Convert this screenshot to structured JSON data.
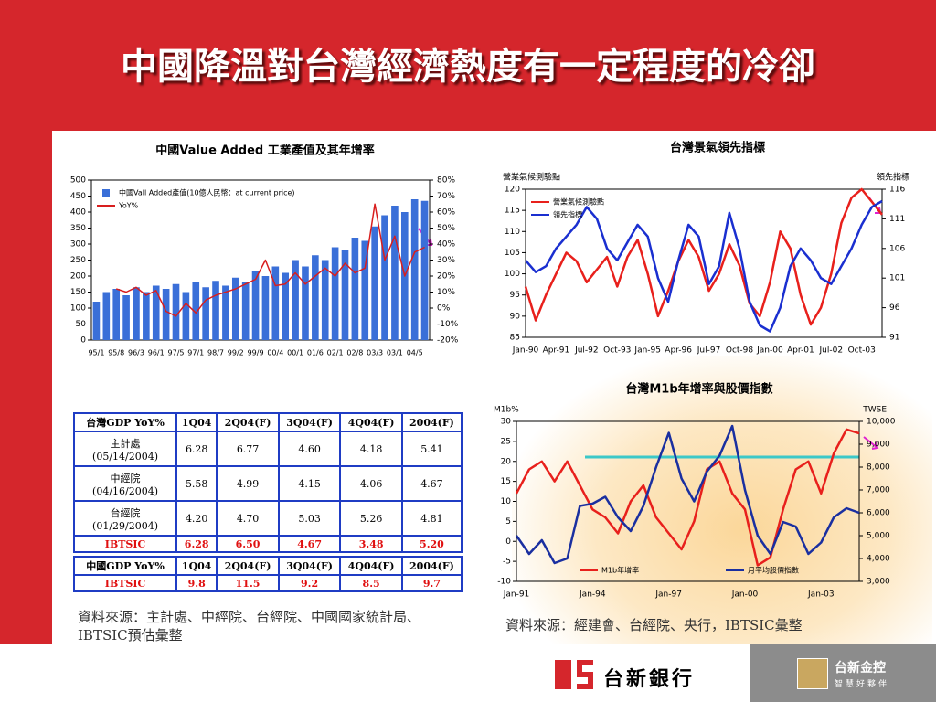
{
  "title": "中國降溫對台灣經濟熱度有一定程度的冷卻",
  "chart_data": [
    {
      "type": "bar",
      "title": "中國Value Added 工業產值及其年增率",
      "categories": [
        "95/1",
        null,
        "95/8",
        null,
        "96/3",
        null,
        "96/1",
        null,
        "97/5",
        null,
        "97/1",
        null,
        "98/7",
        null,
        "99/2",
        null,
        "99/9",
        null,
        "00/4",
        null,
        "00/1",
        null,
        "01/6",
        null,
        "02/1",
        null,
        "02/8",
        null,
        "03/3",
        null,
        "03/1",
        null,
        "04/5",
        null
      ],
      "series": [
        {
          "name": "中國Vall Added產值(10億人民幣：at current price)",
          "color": "#3a6fd8",
          "values": [
            120,
            150,
            160,
            140,
            165,
            150,
            170,
            160,
            175,
            150,
            180,
            165,
            185,
            170,
            195,
            180,
            215,
            200,
            230,
            210,
            250,
            230,
            265,
            250,
            290,
            280,
            320,
            310,
            355,
            390,
            420,
            400,
            440,
            435
          ]
        },
        {
          "name": "YoY%",
          "color": "#d81e1e",
          "type": "line",
          "axis": "y2",
          "values": [
            null,
            null,
            12,
            10,
            13,
            8,
            11,
            -2,
            -5,
            3,
            -3,
            5,
            8,
            10,
            12,
            15,
            18,
            30,
            14,
            15,
            22,
            15,
            20,
            25,
            20,
            28,
            22,
            25,
            65,
            30,
            45,
            20,
            35,
            38
          ]
        }
      ],
      "ylim": [
        0,
        500
      ],
      "yticks": [
        0,
        50,
        100,
        150,
        200,
        250,
        300,
        350,
        400,
        450,
        500
      ],
      "y2lim": [
        -20,
        80
      ],
      "y2ticks": [
        {
          "value": -20,
          "label": "-20%"
        },
        {
          "value": -10,
          "label": "-10%"
        },
        {
          "value": 0,
          "label": "0%"
        },
        {
          "value": 10,
          "label": "10%"
        },
        {
          "value": 20,
          "label": "20%"
        },
        {
          "value": 30,
          "label": "30%"
        },
        {
          "value": 40,
          "label": "40%"
        },
        {
          "value": 50,
          "label": "50%"
        },
        {
          "value": 60,
          "label": "60%"
        },
        {
          "value": 70,
          "label": "70%"
        },
        {
          "value": 80,
          "label": "80%"
        }
      ],
      "legend": "upper left"
    },
    {
      "type": "line",
      "title": "台灣景氣領先指標",
      "ylabel": "營業氣候測驗點",
      "y2label": "領先指標",
      "categories": [
        "Jan-90",
        null,
        null,
        "Apr-91",
        null,
        null,
        "Jul-92",
        null,
        null,
        "Oct-93",
        null,
        null,
        "Jan-95",
        null,
        null,
        "Apr-96",
        null,
        null,
        "Jul-97",
        null,
        null,
        "Oct-98",
        null,
        null,
        "Jan-00",
        null,
        null,
        "Apr-01",
        null,
        null,
        "Jul-02",
        null,
        null,
        "Oct-03",
        null,
        null
      ],
      "series": [
        {
          "name": "營業氣候測驗點",
          "color": "#e8201c",
          "values": [
            97,
            89,
            95,
            100,
            105,
            103,
            98,
            101,
            104,
            97,
            104,
            108,
            100,
            90,
            96,
            103,
            108,
            104,
            96,
            100,
            107,
            102,
            93,
            90,
            98,
            110,
            106,
            95,
            88,
            92,
            100,
            112,
            118,
            120,
            117,
            114
          ]
        },
        {
          "name": "領先指標",
          "color": "#1a2fd0",
          "axis": "y2",
          "values": [
            104,
            102,
            103,
            106,
            108,
            110,
            113,
            111,
            106,
            104,
            107,
            110,
            108,
            101,
            97,
            104,
            110,
            108,
            100,
            103,
            112,
            106,
            97,
            93,
            92,
            96,
            103,
            106,
            104,
            101,
            100,
            103,
            106,
            110,
            113,
            114
          ]
        }
      ],
      "ylim": [
        85,
        120
      ],
      "yticks": [
        85,
        90,
        95,
        100,
        105,
        110,
        115,
        120
      ],
      "y2lim": [
        91,
        116
      ],
      "y2ticks": [
        91,
        96,
        101,
        106,
        111,
        116
      ],
      "legend": "upper left"
    },
    {
      "type": "line",
      "title": "台灣M1b年增率與股價指數",
      "ylabel": "M1b%",
      "y2label": "TWSE",
      "categories": [
        "Jan-91",
        null,
        null,
        null,
        null,
        null,
        "Jan-94",
        null,
        null,
        null,
        null,
        null,
        "Jan-97",
        null,
        null,
        null,
        null,
        null,
        "Jan-00",
        null,
        null,
        null,
        null,
        null,
        "Jan-03",
        null,
        null,
        null
      ],
      "series": [
        {
          "name": "M1b年增率",
          "color": "#e8201c",
          "values": [
            12,
            18,
            20,
            15,
            20,
            14,
            8,
            6,
            2,
            10,
            14,
            6,
            2,
            -2,
            5,
            18,
            20,
            12,
            8,
            -6,
            -4,
            8,
            18,
            20,
            12,
            22,
            28,
            27
          ]
        },
        {
          "name": "月平均股價指數",
          "color": "#1a2fa0",
          "axis": "y2",
          "values": [
            5000,
            4200,
            4800,
            3800,
            4000,
            6300,
            6400,
            6700,
            5800,
            5200,
            6300,
            8000,
            9500,
            7500,
            6500,
            7800,
            8500,
            9800,
            7000,
            5000,
            4200,
            5600,
            5400,
            4200,
            4700,
            5800,
            6200,
            6000
          ]
        }
      ],
      "ylim": [
        -10,
        30
      ],
      "yticks": [
        -10,
        -5,
        0,
        5,
        10,
        15,
        20,
        25,
        30
      ],
      "y2lim": [
        3000,
        10000
      ],
      "y2ticks": [
        {
          "value": 3000,
          "label": "3,000"
        },
        {
          "value": 4000,
          "label": "4,000"
        },
        {
          "value": 5000,
          "label": "5,000"
        },
        {
          "value": 6000,
          "label": "6,000"
        },
        {
          "value": 7000,
          "label": "7,000"
        },
        {
          "value": 8000,
          "label": "8,000"
        },
        {
          "value": 9000,
          "label": "9,000"
        },
        {
          "value": 10000,
          "label": "10,000"
        }
      ],
      "legend": "lower center"
    }
  ],
  "table": {
    "header": [
      "台灣GDP YoY%",
      "1Q04",
      "2Q04(F)",
      "3Q04(F)",
      "4Q04(F)",
      "2004(F)"
    ],
    "rows": [
      [
        "主計處\n(05/14/2004)",
        "6.28",
        "6.77",
        "4.60",
        "4.18",
        "5.41"
      ],
      [
        "中經院\n(04/16/2004)",
        "5.58",
        "4.99",
        "4.15",
        "4.06",
        "4.67"
      ],
      [
        "台經院\n(01/29/2004)",
        "4.20",
        "4.70",
        "5.03",
        "5.26",
        "4.81"
      ],
      [
        "IBTSIC",
        "6.28",
        "6.50",
        "4.67",
        "3.48",
        "5.20"
      ]
    ]
  },
  "table2": {
    "header": [
      "中國GDP YoY%",
      "1Q04",
      "2Q04(F)",
      "3Q04(F)",
      "4Q04(F)",
      "2004(F)"
    ],
    "rows": [
      [
        "IBTSIC",
        "9.8",
        "11.5",
        "9.2",
        "8.5",
        "9.7"
      ]
    ]
  },
  "source_left": "資料來源：主計處、中經院、台經院、中國國家統計局、IBTSIC預估彙整",
  "source_right": "資料來源：經建會、台經院、央行，IBTSIC彙整",
  "footer": {
    "bank": "台新銀行",
    "holding": "台新金控",
    "slogan": "智慧好夥伴"
  }
}
